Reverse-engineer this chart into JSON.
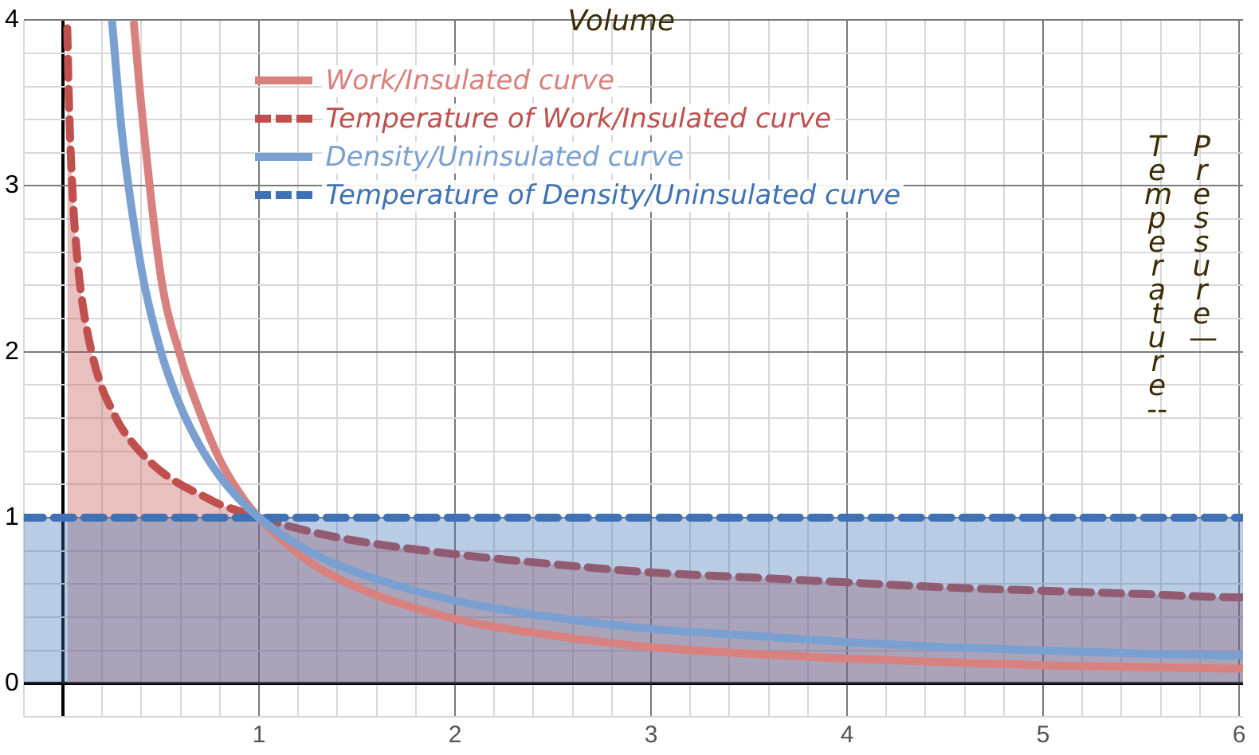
{
  "chart_data": {
    "type": "line",
    "xlabel": "Volume",
    "ylabel": "Pressure —",
    "annotations": [
      "Temperature --"
    ],
    "xlim": [
      -0.2,
      6.02
    ],
    "ylim": [
      -0.2,
      4.0
    ],
    "xticks": [
      {
        "value": -0.2,
        "label": null
      },
      {
        "value": 0,
        "label": null
      },
      {
        "value": 0.2,
        "label": null
      },
      {
        "value": 0.4,
        "label": null
      },
      {
        "value": 0.6,
        "label": null
      },
      {
        "value": 0.8,
        "label": null
      },
      1,
      {
        "value": 1.2,
        "label": null
      },
      {
        "value": 1.4,
        "label": null
      },
      {
        "value": 1.6,
        "label": null
      },
      {
        "value": 1.8,
        "label": null
      },
      2,
      {
        "value": 2.2,
        "label": null
      },
      {
        "value": 2.4,
        "label": null
      },
      {
        "value": 2.6,
        "label": null
      },
      {
        "value": 2.8,
        "label": null
      },
      3,
      {
        "value": 3.2,
        "label": null
      },
      {
        "value": 3.4,
        "label": null
      },
      {
        "value": 3.6,
        "label": null
      },
      {
        "value": 3.8,
        "label": null
      },
      4,
      {
        "value": 4.2,
        "label": null
      },
      {
        "value": 4.4,
        "label": null
      },
      {
        "value": 4.6,
        "label": null
      },
      {
        "value": 4.8,
        "label": null
      },
      5,
      {
        "value": 5.2,
        "label": null
      },
      {
        "value": 5.4,
        "label": null
      },
      {
        "value": 5.6,
        "label": null
      },
      {
        "value": 5.8,
        "label": null
      },
      6
    ],
    "yticks": [
      {
        "value": -0.2,
        "label": null
      },
      0,
      {
        "value": 0.2,
        "label": null
      },
      {
        "value": 0.4,
        "label": null
      },
      {
        "value": 0.6,
        "label": null
      },
      {
        "value": 0.8,
        "label": null
      },
      1,
      {
        "value": 1.2,
        "label": null
      },
      {
        "value": 1.4,
        "label": null
      },
      {
        "value": 1.6,
        "label": null
      },
      {
        "value": 1.8,
        "label": null
      },
      2,
      {
        "value": 2.2,
        "label": null
      },
      {
        "value": 2.4,
        "label": null
      },
      {
        "value": 2.6,
        "label": null
      },
      {
        "value": 2.8,
        "label": null
      },
      3,
      {
        "value": 3.2,
        "label": null
      },
      {
        "value": 3.4,
        "label": null
      },
      {
        "value": 3.6,
        "label": null
      },
      {
        "value": 3.8,
        "label": null
      },
      4
    ],
    "grid": true,
    "legend": "top",
    "series": [
      {
        "name": "Work/Insulated curve",
        "color": "#d9817e",
        "line_style": "solid",
        "x": [
          0.362,
          0.4,
          0.5,
          0.6,
          0.7,
          0.8,
          0.9,
          1,
          1.25,
          1.5,
          2,
          2.5,
          3,
          3.5,
          4,
          4.5,
          5,
          5.5,
          6,
          6.02
        ],
        "values": [
          3.98,
          3.48,
          2.45,
          1.97,
          1.63,
          1.35,
          1.15,
          1,
          0.74,
          0.58,
          0.39,
          0.29,
          0.22,
          0.18,
          0.15,
          0.13,
          0.11,
          0.1,
          0.09,
          0.09
        ]
      },
      {
        "name": "Temperature of Work/Insulated curve",
        "type": "area",
        "color": "#c0504d",
        "line_style": "dashed",
        "x": [
          0.022,
          0.03,
          0.05,
          0.075,
          0.1,
          0.15,
          0.2,
          0.25,
          0.3,
          0.4,
          0.5,
          0.6,
          0.7,
          0.8,
          0.9,
          1,
          1.25,
          1.5,
          2,
          2.5,
          3,
          3.5,
          4,
          4.5,
          5,
          5.5,
          6,
          6.02
        ],
        "values": [
          3.95,
          3.53,
          2.94,
          2.54,
          2.29,
          1.98,
          1.78,
          1.65,
          1.54,
          1.39,
          1.28,
          1.2,
          1.14,
          1.08,
          1.04,
          1,
          0.92,
          0.86,
          0.78,
          0.72,
          0.67,
          0.64,
          0.61,
          0.58,
          0.56,
          0.54,
          0.52,
          0.52
        ]
      },
      {
        "name": "Density/Uninsulated curve",
        "color": "#7aa0d2",
        "line_style": "solid",
        "x": [
          0.25,
          0.3,
          0.4,
          0.5,
          0.6,
          0.7,
          0.8,
          0.9,
          1,
          1.25,
          1.5,
          2,
          2.5,
          3,
          3.5,
          4,
          4.5,
          5,
          5.5,
          6,
          6.02
        ],
        "values": [
          4,
          3.33,
          2.5,
          2,
          1.67,
          1.43,
          1.25,
          1.11,
          1,
          0.8,
          0.67,
          0.5,
          0.4,
          0.33,
          0.29,
          0.25,
          0.22,
          0.2,
          0.18,
          0.17,
          0.17
        ]
      },
      {
        "name": "Temperature of Density/Uninsulated curve",
        "type": "area",
        "color": "#3e72b5",
        "line_style": "dashed",
        "x": [
          -0.2,
          6.02
        ],
        "values": [
          1,
          1
        ]
      }
    ]
  }
}
